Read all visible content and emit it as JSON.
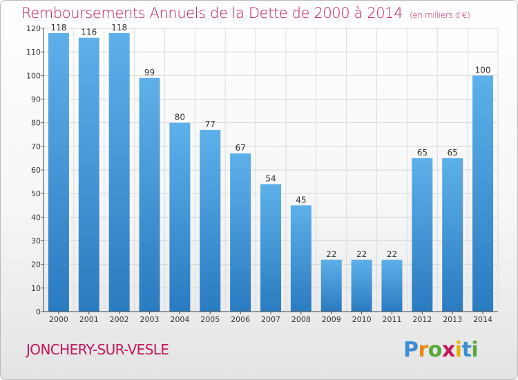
{
  "header": {
    "title": "Remboursements Annuels de la Dette de 2000 à 2014",
    "subtitle": "(en milliers d'€)"
  },
  "footer": {
    "commune": "JONCHERY-SUR-VESLE",
    "logo": [
      "P",
      "r",
      "o",
      "x",
      "i",
      "t",
      "i"
    ]
  },
  "chart_data": {
    "type": "bar",
    "title": "Remboursements Annuels de la Dette de 2000 à 2014",
    "subtitle": "(en milliers d'€)",
    "categories": [
      "2000",
      "2001",
      "2002",
      "2003",
      "2004",
      "2005",
      "2006",
      "2007",
      "2008",
      "2009",
      "2010",
      "2011",
      "2012",
      "2013",
      "2014"
    ],
    "values": [
      118,
      116,
      118,
      99,
      80,
      77,
      67,
      54,
      45,
      22,
      22,
      22,
      65,
      65,
      100
    ],
    "ylim": [
      0,
      120
    ],
    "yticks": [
      0,
      10,
      20,
      30,
      40,
      50,
      60,
      70,
      80,
      90,
      100,
      110,
      120
    ],
    "grid": true,
    "bar_color": "#3a8fd4",
    "bar_color_light": "#5eb0ea"
  }
}
